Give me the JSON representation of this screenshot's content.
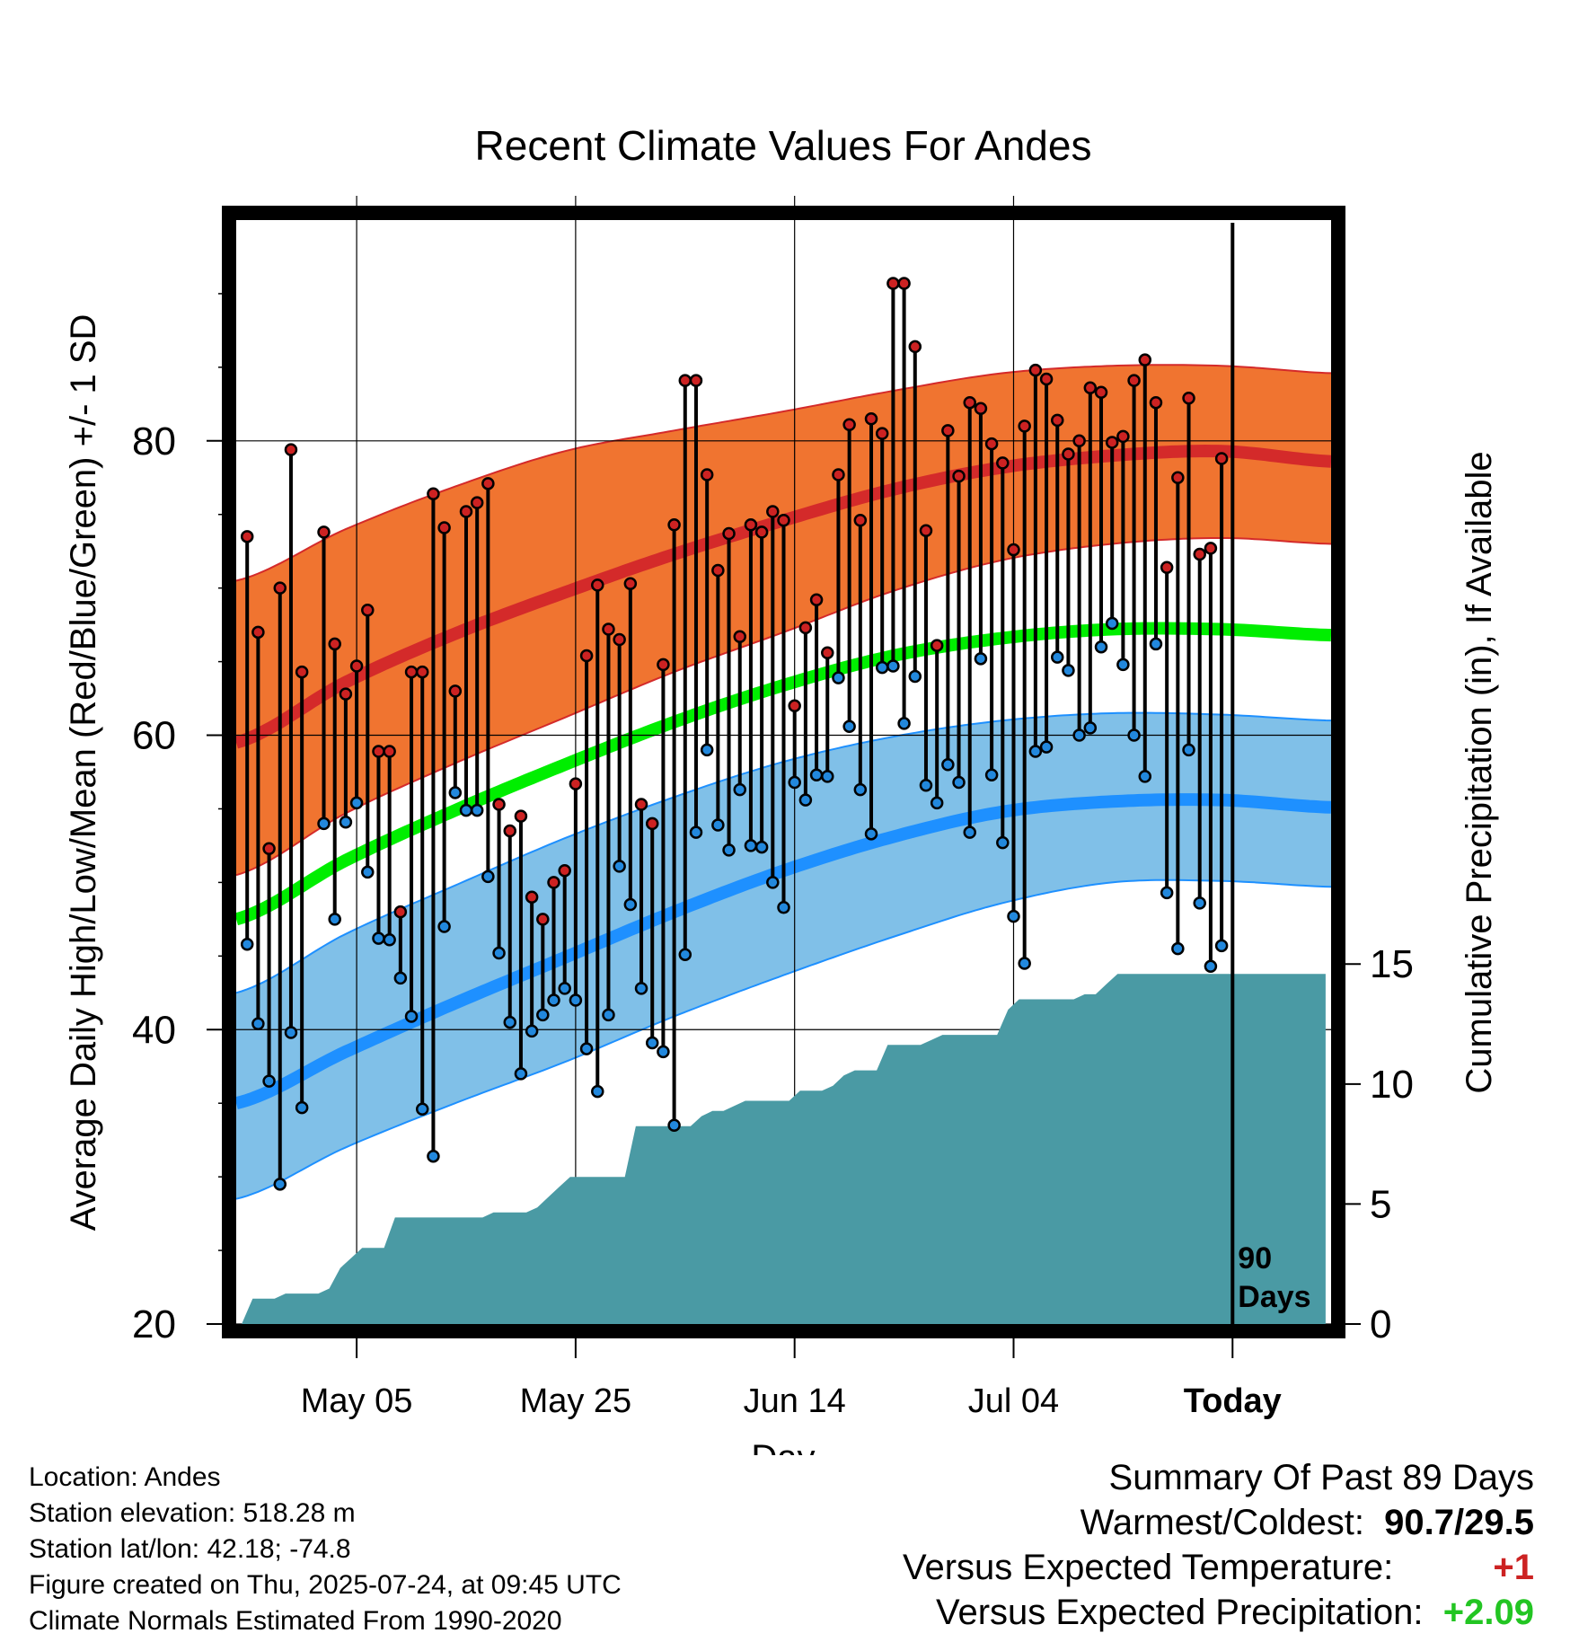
{
  "chart_data": {
    "type": "line",
    "title": "Recent Climate Values For Andes",
    "xlabel": "Day",
    "ylabel": "Average Daily High/Low/Mean (Red/Blue/Green) +/- 1 SD",
    "y2label": "Cumulative Precipitation (in), If Available",
    "ylim": [
      20,
      95
    ],
    "y2lim": [
      0,
      46
    ],
    "yticks": [
      20,
      40,
      60,
      80
    ],
    "y2ticks": [
      0,
      5,
      10,
      15
    ],
    "xticks": [
      {
        "day": 11,
        "label": "May 05"
      },
      {
        "day": 31,
        "label": "May 25"
      },
      {
        "day": 51,
        "label": "Jun 14"
      },
      {
        "day": 71,
        "label": "Jul 04"
      },
      {
        "day": 91,
        "label": "Today"
      }
    ],
    "today_marker": {
      "day": 91,
      "label": [
        "90",
        "Days"
      ]
    },
    "colors": {
      "high_band": "#f07430",
      "high_line": "#d42a2a",
      "mean_line": "#00ee00",
      "low_band": "#80c0e8",
      "low_line": "#1e90ff",
      "precip": "#4a9aa4",
      "high_dot": "#cc2222",
      "low_dot": "#2288dd"
    },
    "normals": {
      "days": [
        0,
        10,
        20,
        30,
        40,
        50,
        60,
        70,
        80,
        90,
        100
      ],
      "high_mean": [
        59.5,
        63.6,
        66.9,
        69.7,
        72.3,
        74.6,
        76.7,
        78.2,
        79.0,
        79.3,
        78.6
      ],
      "high_sd_upper": [
        70.5,
        74.0,
        76.9,
        79.3,
        80.7,
        82.0,
        83.4,
        84.6,
        85.1,
        85.1,
        84.6
      ],
      "high_sd_lower": [
        50.5,
        54.7,
        58.1,
        61.2,
        64.3,
        67.0,
        69.8,
        71.9,
        73.0,
        73.4,
        73.0
      ],
      "mean": [
        47.5,
        51.5,
        54.9,
        58.0,
        60.9,
        63.4,
        65.4,
        66.6,
        67.2,
        67.2,
        66.8
      ],
      "low_mean": [
        35.0,
        38.5,
        41.8,
        44.9,
        48.0,
        50.8,
        53.1,
        54.8,
        55.5,
        55.6,
        55.1
      ],
      "low_sd_upper": [
        42.5,
        46.5,
        49.8,
        53.0,
        55.8,
        58.2,
        59.9,
        61.0,
        61.5,
        61.4,
        61.0
      ],
      "low_sd_lower": [
        28.5,
        32.0,
        35.0,
        37.8,
        40.9,
        43.7,
        46.3,
        48.6,
        50.0,
        50.1,
        49.7
      ]
    },
    "daily": {
      "start_day": 1,
      "highs": [
        73.5,
        67.0,
        52.3,
        70.0,
        79.4,
        64.3,
        null,
        73.8,
        66.2,
        62.8,
        64.7,
        68.5,
        58.9,
        58.9,
        48.0,
        64.3,
        64.3,
        76.4,
        74.1,
        63.0,
        75.2,
        75.8,
        77.1,
        55.3,
        53.5,
        54.5,
        49.0,
        47.5,
        50.0,
        50.8,
        56.7,
        65.4,
        70.2,
        67.2,
        66.5,
        70.3,
        55.3,
        54.0,
        64.8,
        74.3,
        84.1,
        84.1,
        77.7,
        71.2,
        73.7,
        66.7,
        74.3,
        73.8,
        75.2,
        74.6,
        62.0,
        67.3,
        69.2,
        65.6,
        77.7,
        81.1,
        74.6,
        81.5,
        80.5,
        90.7,
        90.7,
        86.4,
        73.9,
        66.1,
        80.7,
        77.6,
        82.6,
        82.2,
        79.8,
        78.5,
        72.6,
        81.0,
        84.8,
        84.2,
        81.4,
        79.1,
        80.0,
        83.6,
        83.3,
        79.9,
        80.3,
        84.1,
        85.5,
        82.6,
        71.4,
        77.5,
        82.9,
        72.3,
        72.7,
        78.8
      ],
      "lows": [
        45.8,
        40.4,
        36.5,
        29.5,
        39.8,
        34.7,
        null,
        54.0,
        47.5,
        54.1,
        55.4,
        50.7,
        46.2,
        46.1,
        43.5,
        40.9,
        34.6,
        31.4,
        47.0,
        56.1,
        54.9,
        54.9,
        50.4,
        45.2,
        40.5,
        37.0,
        39.9,
        41.0,
        42.0,
        42.8,
        42.0,
        38.7,
        35.8,
        41.0,
        51.1,
        48.5,
        42.8,
        39.1,
        38.5,
        33.5,
        45.1,
        53.4,
        59.0,
        53.9,
        52.2,
        56.3,
        52.5,
        52.4,
        50.0,
        48.3,
        56.8,
        55.6,
        57.3,
        57.2,
        63.9,
        60.6,
        56.3,
        53.3,
        64.6,
        64.7,
        60.8,
        64.0,
        56.6,
        55.4,
        58.0,
        56.8,
        53.4,
        65.2,
        57.3,
        52.7,
        47.7,
        44.5,
        58.9,
        59.2,
        65.3,
        64.4,
        60.0,
        60.5,
        66.0,
        67.6,
        64.8,
        60.0,
        57.2,
        66.2,
        49.3,
        45.5,
        59.0,
        48.6,
        44.3,
        45.7
      ]
    },
    "precip_cumulative": {
      "start_day": 0.5,
      "values": [
        0.0,
        1.06,
        1.06,
        1.06,
        1.27,
        1.27,
        1.27,
        1.27,
        1.48,
        2.33,
        2.75,
        3.17,
        3.17,
        3.17,
        4.44,
        4.44,
        4.44,
        4.44,
        4.44,
        4.44,
        4.44,
        4.44,
        4.44,
        4.65,
        4.65,
        4.65,
        4.65,
        4.86,
        5.29,
        5.71,
        6.13,
        6.13,
        6.13,
        6.13,
        6.13,
        6.13,
        8.24,
        8.24,
        8.24,
        8.24,
        8.24,
        8.24,
        8.66,
        8.88,
        8.88,
        9.09,
        9.3,
        9.3,
        9.3,
        9.3,
        9.3,
        9.72,
        9.72,
        9.72,
        9.93,
        10.36,
        10.57,
        10.57,
        10.57,
        11.63,
        11.63,
        11.63,
        11.63,
        11.84,
        12.05,
        12.05,
        12.05,
        12.05,
        12.05,
        12.05,
        13.1,
        13.53,
        13.53,
        13.53,
        13.53,
        13.53,
        13.53,
        13.74,
        13.74,
        14.17,
        14.59,
        14.59,
        14.59,
        14.59,
        14.59,
        14.59,
        14.59,
        14.59,
        14.59,
        14.59,
        14.59,
        14.59,
        14.59,
        14.59,
        14.59,
        14.59,
        14.59,
        14.59,
        14.59,
        14.59
      ]
    }
  },
  "footer": {
    "location": "Location: Andes",
    "elevation": "Station elevation: 518.28 m",
    "latlon": "Station lat/lon: 42.18; -74.8",
    "created": "Figure created on Thu, 2025-07-24, at 09:45 UTC",
    "normals": "Climate Normals Estimated From 1990-2020"
  },
  "summary": {
    "heading": "Summary Of Past 89 Days",
    "warm_cold_label": "Warmest/Coldest:",
    "warm_cold_value": "90.7/29.5",
    "temp_label": "Versus Expected Temperature:",
    "temp_value": "+1",
    "precip_label": "Versus Expected Precipitation:",
    "precip_value": "+2.09"
  }
}
